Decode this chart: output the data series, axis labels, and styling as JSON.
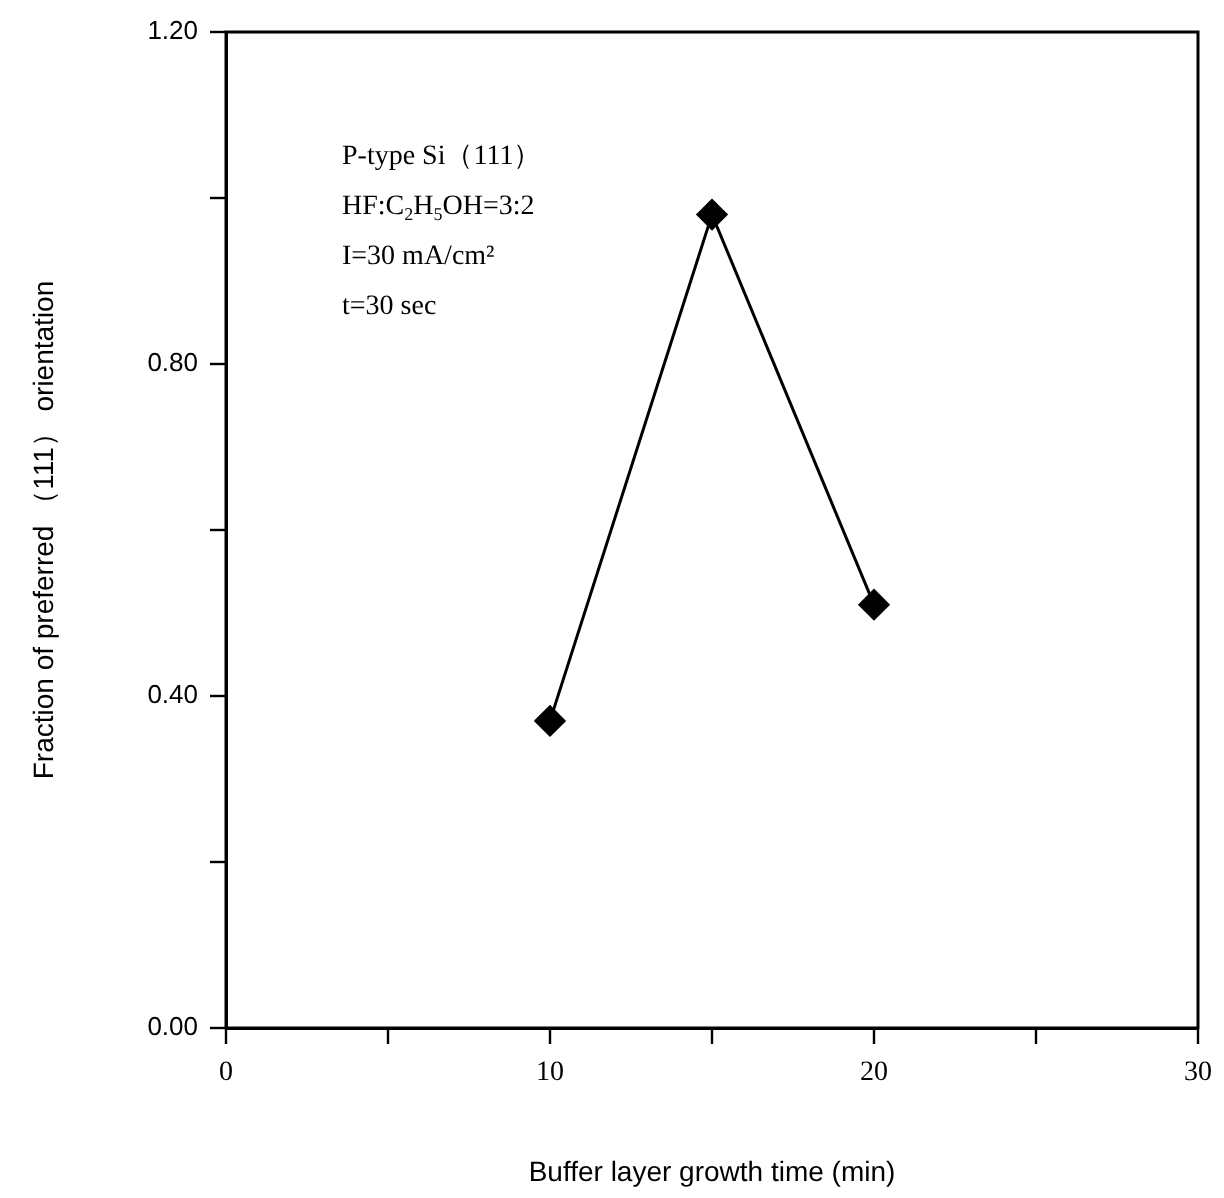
{
  "chart_data": {
    "type": "line",
    "xlabel": "Buffer layer growth time (min)",
    "ylabel": "Fraction of preferred （111） orientation",
    "x": [
      10,
      15,
      20
    ],
    "series": [
      {
        "color": "#000000",
        "values": [
          0.37,
          0.98,
          0.51
        ]
      }
    ],
    "xlim": [
      0,
      30
    ],
    "xticks": [
      0,
      {
        "value": 5,
        "label": null
      },
      10,
      {
        "value": 15,
        "label": null
      },
      20,
      {
        "value": 25,
        "label": null
      },
      30
    ],
    "ylim": [
      0,
      1.2
    ],
    "yticks": [
      {
        "value": 0,
        "label": "0.00"
      },
      {
        "value": 0.2,
        "label": null
      },
      {
        "value": 0.4,
        "label": "0.40"
      },
      {
        "value": 0.6,
        "label": null
      },
      {
        "value": 0.8,
        "label": "0.80"
      },
      {
        "value": 1.0,
        "label": null
      },
      {
        "value": 1.2,
        "label": "1.20"
      }
    ],
    "annotations": [
      "P-type Si（111）",
      "HF:C$_{2}$H$_{5}$OH=3:2",
      "I=30 mA/cm²",
      "t=30 sec"
    ],
    "marker": "diamond",
    "line_style": "solid",
    "grid": false,
    "legend": false
  }
}
